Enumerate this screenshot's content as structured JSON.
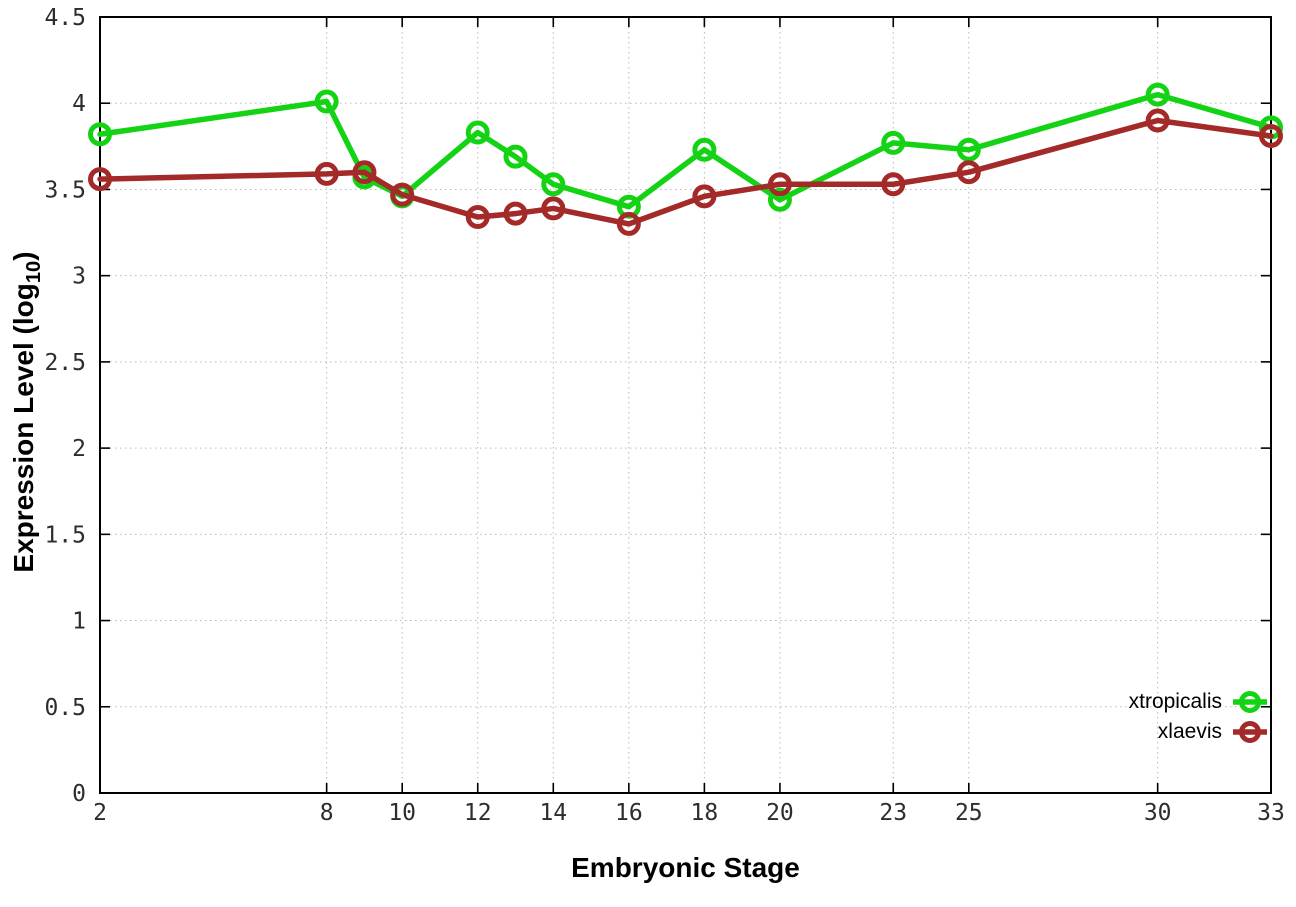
{
  "axes": {
    "y_label_main": "Expression Level (log",
    "y_label_sub": "10",
    "y_label_close": ")",
    "x_label": "Embryonic Stage"
  },
  "chart_data": {
    "type": "line",
    "title": "",
    "xlabel": "Embryonic Stage",
    "ylabel": "Expression Level (log10)",
    "xlim": [
      2,
      33
    ],
    "ylim": [
      0,
      4.5
    ],
    "grid": true,
    "legend_position": "bottom-right",
    "x": [
      2,
      8,
      9,
      10,
      12,
      13,
      14,
      16,
      18,
      20,
      23,
      25,
      30,
      33
    ],
    "x_ticks": {
      "values": [
        2,
        8,
        10,
        12,
        14,
        16,
        18,
        20,
        23,
        25,
        30,
        33
      ],
      "labels": [
        "2",
        "8",
        "10",
        "12",
        "14",
        "16",
        "18",
        "20",
        "23",
        "25",
        "30",
        "33"
      ]
    },
    "y_ticks": {
      "values": [
        0,
        0.5,
        1,
        1.5,
        2,
        2.5,
        3,
        3.5,
        4,
        4.5
      ],
      "labels": [
        "0",
        "0.5",
        "1",
        "1.5",
        "2",
        "2.5",
        "3",
        "3.5",
        "4",
        "4.5"
      ]
    },
    "series": [
      {
        "name": "xtropicalis",
        "color": "#14d314",
        "values": [
          3.82,
          4.01,
          3.57,
          3.46,
          3.83,
          3.69,
          3.53,
          3.4,
          3.73,
          3.44,
          3.77,
          3.73,
          4.05,
          3.86
        ]
      },
      {
        "name": "xlaevis",
        "color": "#a42a2a",
        "values": [
          3.56,
          3.59,
          3.6,
          3.47,
          3.34,
          3.36,
          3.39,
          3.3,
          3.46,
          3.53,
          3.53,
          3.6,
          3.9,
          3.81
        ]
      }
    ]
  }
}
